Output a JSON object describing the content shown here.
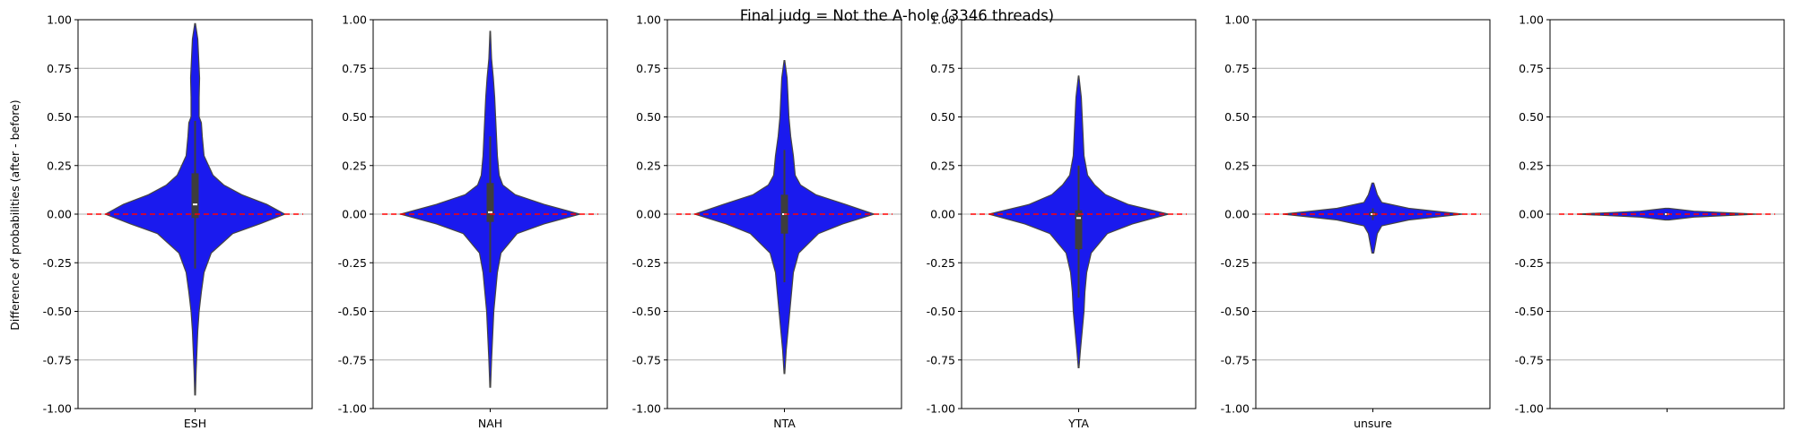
{
  "figure": {
    "suptitle": "Final judg = Not the A-hole (3346 threads)",
    "ylabel": "Difference of probabilities (after - before)"
  },
  "colors": {
    "violin_fill": "#1a1aee",
    "violin_edge": "#444444",
    "box": "#3d3d3d",
    "median": "#ffffff",
    "zero_line": "#ff0000",
    "grid": "#b0b0b0"
  },
  "chart_data": [
    {
      "type": "violin",
      "category": "ESH",
      "ylim": [
        -1,
        1
      ],
      "yticks": [
        "-1.00",
        "-0.75",
        "-0.50",
        "-0.25",
        "0.00",
        "0.25",
        "0.50",
        "0.75",
        "1.00"
      ],
      "grid": "horizontal",
      "zero_line": 0,
      "min": -0.93,
      "max": 0.98,
      "q1": -0.02,
      "median": 0.05,
      "q3": 0.21,
      "whisker_low": -0.28,
      "whisker_high": 0.48,
      "density": [
        [
          -0.93,
          0.004
        ],
        [
          -0.8,
          0.012
        ],
        [
          -0.6,
          0.03
        ],
        [
          -0.5,
          0.045
        ],
        [
          -0.4,
          0.07
        ],
        [
          -0.3,
          0.1
        ],
        [
          -0.2,
          0.18
        ],
        [
          -0.1,
          0.42
        ],
        [
          -0.05,
          0.72
        ],
        [
          0.0,
          1.0
        ],
        [
          0.05,
          0.8
        ],
        [
          0.1,
          0.52
        ],
        [
          0.15,
          0.32
        ],
        [
          0.2,
          0.2
        ],
        [
          0.3,
          0.1
        ],
        [
          0.4,
          0.08
        ],
        [
          0.47,
          0.07
        ],
        [
          0.5,
          0.045
        ],
        [
          0.6,
          0.045
        ],
        [
          0.7,
          0.05
        ],
        [
          0.8,
          0.04
        ],
        [
          0.9,
          0.03
        ],
        [
          0.98,
          0.004
        ]
      ]
    },
    {
      "type": "violin",
      "category": "NAH",
      "ylim": [
        -1,
        1
      ],
      "yticks": [
        "-1.00",
        "-0.75",
        "-0.50",
        "-0.25",
        "0.00",
        "0.25",
        "0.50",
        "0.75",
        "1.00"
      ],
      "grid": "horizontal",
      "zero_line": 0,
      "min": -0.89,
      "max": 0.94,
      "q1": -0.04,
      "median": 0.01,
      "q3": 0.16,
      "whisker_low": -0.3,
      "whisker_high": 0.4,
      "density": [
        [
          -0.89,
          0.004
        ],
        [
          -0.75,
          0.015
        ],
        [
          -0.6,
          0.03
        ],
        [
          -0.5,
          0.04
        ],
        [
          -0.4,
          0.06
        ],
        [
          -0.3,
          0.08
        ],
        [
          -0.2,
          0.12
        ],
        [
          -0.1,
          0.3
        ],
        [
          -0.05,
          0.6
        ],
        [
          0.0,
          1.0
        ],
        [
          0.05,
          0.6
        ],
        [
          0.1,
          0.28
        ],
        [
          0.15,
          0.14
        ],
        [
          0.2,
          0.1
        ],
        [
          0.3,
          0.08
        ],
        [
          0.4,
          0.07
        ],
        [
          0.5,
          0.06
        ],
        [
          0.6,
          0.05
        ],
        [
          0.7,
          0.035
        ],
        [
          0.8,
          0.015
        ],
        [
          0.94,
          0.003
        ]
      ]
    },
    {
      "type": "violin",
      "category": "NTA",
      "ylim": [
        -1,
        1
      ],
      "yticks": [
        "-1.00",
        "-0.75",
        "-0.50",
        "-0.25",
        "0.00",
        "0.25",
        "0.50",
        "0.75",
        "1.00"
      ],
      "grid": "horizontal",
      "zero_line": 0,
      "min": -0.82,
      "max": 0.79,
      "q1": -0.1,
      "median": 0.0,
      "q3": 0.1,
      "whisker_low": -0.35,
      "whisker_high": 0.33,
      "density": [
        [
          -0.82,
          0.004
        ],
        [
          -0.7,
          0.02
        ],
        [
          -0.6,
          0.04
        ],
        [
          -0.5,
          0.06
        ],
        [
          -0.4,
          0.08
        ],
        [
          -0.3,
          0.1
        ],
        [
          -0.2,
          0.16
        ],
        [
          -0.1,
          0.38
        ],
        [
          -0.05,
          0.65
        ],
        [
          0.0,
          1.0
        ],
        [
          0.05,
          0.68
        ],
        [
          0.1,
          0.35
        ],
        [
          0.15,
          0.18
        ],
        [
          0.2,
          0.12
        ],
        [
          0.3,
          0.1
        ],
        [
          0.4,
          0.07
        ],
        [
          0.5,
          0.05
        ],
        [
          0.6,
          0.04
        ],
        [
          0.7,
          0.03
        ],
        [
          0.79,
          0.004
        ]
      ]
    },
    {
      "type": "violin",
      "category": "YTA",
      "ylim": [
        -1,
        1
      ],
      "yticks": [
        "-1.00",
        "-0.75",
        "-0.50",
        "-0.25",
        "0.00",
        "0.25",
        "0.50",
        "0.75",
        "1.00"
      ],
      "grid": "horizontal",
      "zero_line": 0,
      "min": -0.79,
      "max": 0.71,
      "q1": -0.18,
      "median": -0.02,
      "q3": 0.02,
      "whisker_low": -0.43,
      "whisker_high": 0.25,
      "density": [
        [
          -0.79,
          0.004
        ],
        [
          -0.7,
          0.02
        ],
        [
          -0.6,
          0.04
        ],
        [
          -0.5,
          0.06
        ],
        [
          -0.4,
          0.07
        ],
        [
          -0.3,
          0.09
        ],
        [
          -0.2,
          0.14
        ],
        [
          -0.1,
          0.32
        ],
        [
          -0.05,
          0.6
        ],
        [
          0.0,
          1.0
        ],
        [
          0.05,
          0.55
        ],
        [
          0.1,
          0.3
        ],
        [
          0.15,
          0.18
        ],
        [
          0.2,
          0.1
        ],
        [
          0.3,
          0.06
        ],
        [
          0.4,
          0.05
        ],
        [
          0.5,
          0.04
        ],
        [
          0.6,
          0.03
        ],
        [
          0.71,
          0.003
        ]
      ]
    },
    {
      "type": "violin",
      "category": "unsure",
      "ylim": [
        -1,
        1
      ],
      "yticks": [
        "-1.00",
        "-0.75",
        "-0.50",
        "-0.25",
        "0.00",
        "0.25",
        "0.50",
        "0.75",
        "1.00"
      ],
      "grid": "horizontal",
      "zero_line": 0,
      "min": -0.2,
      "max": 0.16,
      "q1": -0.01,
      "median": 0.0,
      "q3": 0.01,
      "whisker_low": -0.03,
      "whisker_high": 0.03,
      "density": [
        [
          -0.2,
          0.01
        ],
        [
          -0.15,
          0.03
        ],
        [
          -0.1,
          0.05
        ],
        [
          -0.06,
          0.1
        ],
        [
          -0.03,
          0.4
        ],
        [
          0.0,
          1.0
        ],
        [
          0.03,
          0.4
        ],
        [
          0.06,
          0.1
        ],
        [
          0.1,
          0.05
        ],
        [
          0.16,
          0.01
        ]
      ]
    },
    {
      "type": "violin",
      "category": "",
      "ylim": [
        -1,
        1
      ],
      "yticks": [
        "-1.00",
        "-0.75",
        "-0.50",
        "-0.25",
        "0.00",
        "0.25",
        "0.50",
        "0.75",
        "1.00"
      ],
      "grid": "horizontal",
      "zero_line": 0,
      "min": -0.03,
      "max": 0.03,
      "q1": -0.003,
      "median": 0.0,
      "q3": 0.003,
      "whisker_low": -0.01,
      "whisker_high": 0.01,
      "density": [
        [
          -0.03,
          0.02
        ],
        [
          -0.015,
          0.3
        ],
        [
          0.0,
          1.0
        ],
        [
          0.015,
          0.3
        ],
        [
          0.03,
          0.02
        ]
      ]
    }
  ]
}
